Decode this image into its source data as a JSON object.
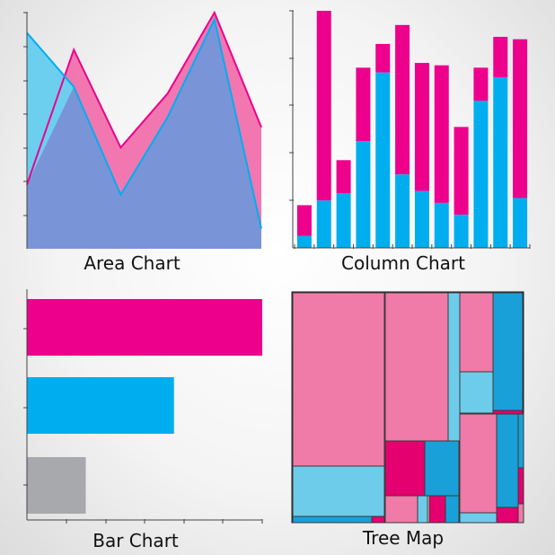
{
  "colors": {
    "pink": "#ec008c",
    "pink_light": "#f277b0",
    "blue": "#00aeef",
    "blue_light": "#6dcff0",
    "area_overlap": "#7a94d8",
    "gray": "#a7a9ac",
    "axis": "#444444"
  },
  "chart_data": [
    {
      "type": "area",
      "title": "Area Chart",
      "x": [
        0,
        1,
        2,
        3,
        4,
        5
      ],
      "ylim": [
        0,
        7
      ],
      "series": [
        {
          "values": [
            1.9,
            5.9,
            3.0,
            4.6,
            7.0,
            3.6
          ]
        },
        {
          "values": [
            6.4,
            4.8,
            1.6,
            3.9,
            6.8,
            0.6
          ]
        }
      ]
    },
    {
      "type": "bar",
      "stacked": true,
      "title": "Column Chart",
      "ylim": [
        0,
        5
      ],
      "series": [
        {
          "values": [
            0.25,
            1.0,
            1.15,
            2.25,
            3.7,
            1.55,
            1.2,
            0.95,
            0.7,
            3.1,
            3.6,
            1.05
          ]
        },
        {
          "values": [
            0.65,
            4.0,
            0.7,
            1.55,
            0.6,
            3.15,
            2.7,
            2.9,
            1.85,
            0.7,
            0.85,
            3.35
          ]
        }
      ]
    },
    {
      "type": "bar",
      "orientation": "horizontal",
      "title": "Bar Chart",
      "xlim": [
        0,
        6
      ],
      "categories": [
        "",
        "",
        ""
      ],
      "values": [
        6.0,
        3.75,
        1.5
      ]
    },
    {
      "type": "treemap",
      "title": "Tree Map"
    }
  ]
}
